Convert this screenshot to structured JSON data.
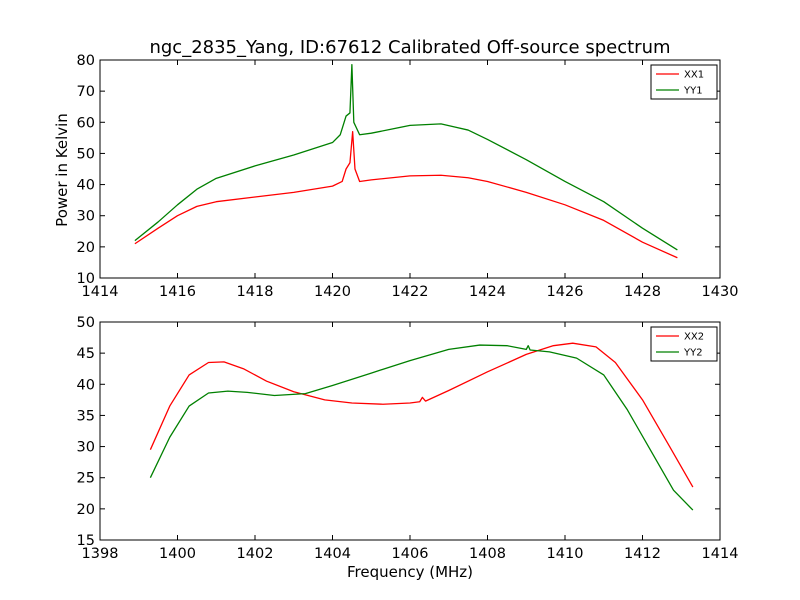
{
  "figure": {
    "title": "ngc_2835_Yang, ID:67612 Calibrated Off-source spectrum",
    "ylabel_top": "Power in Kelvin",
    "xlabel_bottom": "Frequency (MHz)"
  },
  "chart_data": [
    {
      "type": "line",
      "title": "ngc_2835_Yang, ID:67612 Calibrated Off-source spectrum",
      "xlabel": "",
      "ylabel": "Power in Kelvin",
      "xlim": [
        1414,
        1430
      ],
      "ylim": [
        10,
        80
      ],
      "xticks": [
        1414,
        1416,
        1418,
        1420,
        1422,
        1424,
        1426,
        1428,
        1430
      ],
      "yticks": [
        10,
        20,
        30,
        40,
        50,
        60,
        70,
        80
      ],
      "legend": "top-right",
      "grid": false,
      "series": [
        {
          "name": "XX1",
          "color": "#ff0000",
          "x": [
            1414.9,
            1415.5,
            1416.0,
            1416.5,
            1417.0,
            1418.0,
            1419.0,
            1420.0,
            1420.25,
            1420.35,
            1420.45,
            1420.52,
            1420.58,
            1420.7,
            1421.0,
            1422.0,
            1422.8,
            1423.5,
            1424.0,
            1425.0,
            1426.0,
            1427.0,
            1428.0,
            1428.9
          ],
          "y": [
            21.0,
            26.0,
            30.0,
            33.0,
            34.5,
            36.0,
            37.5,
            39.5,
            41.0,
            45.0,
            47.0,
            57.0,
            45.0,
            41.0,
            41.5,
            42.8,
            43.0,
            42.2,
            41.0,
            37.5,
            33.5,
            28.5,
            21.5,
            16.5
          ]
        },
        {
          "name": "YY1",
          "color": "#008000",
          "x": [
            1414.9,
            1415.5,
            1416.0,
            1416.5,
            1417.0,
            1418.0,
            1419.0,
            1420.0,
            1420.2,
            1420.35,
            1420.45,
            1420.5,
            1420.55,
            1420.7,
            1421.0,
            1422.0,
            1422.8,
            1423.5,
            1424.0,
            1425.0,
            1426.0,
            1427.0,
            1428.0,
            1428.9
          ],
          "y": [
            22.0,
            28.0,
            33.5,
            38.5,
            42.0,
            46.0,
            49.5,
            53.5,
            56.0,
            62.0,
            63.0,
            78.5,
            60.0,
            56.0,
            56.5,
            59.0,
            59.5,
            57.5,
            54.5,
            48.0,
            41.0,
            34.5,
            26.0,
            19.0
          ]
        }
      ]
    },
    {
      "type": "line",
      "title": "",
      "xlabel": "Frequency (MHz)",
      "ylabel": "",
      "xlim": [
        1398,
        1414
      ],
      "ylim": [
        15,
        50
      ],
      "xticks": [
        1398,
        1400,
        1402,
        1404,
        1406,
        1408,
        1410,
        1412,
        1414
      ],
      "yticks": [
        15,
        20,
        25,
        30,
        35,
        40,
        45,
        50
      ],
      "legend": "top-right",
      "grid": false,
      "series": [
        {
          "name": "XX2",
          "color": "#ff0000",
          "x": [
            1399.3,
            1399.8,
            1400.3,
            1400.8,
            1401.2,
            1401.7,
            1402.3,
            1403.0,
            1403.8,
            1404.5,
            1405.3,
            1406.0,
            1406.25,
            1406.32,
            1406.4,
            1407.0,
            1408.0,
            1409.0,
            1409.7,
            1410.2,
            1410.8,
            1411.3,
            1412.0,
            1412.7,
            1413.3
          ],
          "y": [
            29.5,
            36.5,
            41.5,
            43.5,
            43.6,
            42.5,
            40.5,
            38.8,
            37.5,
            37.0,
            36.8,
            37.0,
            37.2,
            37.9,
            37.3,
            39.0,
            42.0,
            44.8,
            46.2,
            46.6,
            46.0,
            43.5,
            37.5,
            30.0,
            23.5
          ]
        },
        {
          "name": "YY2",
          "color": "#008000",
          "x": [
            1399.3,
            1399.8,
            1400.3,
            1400.8,
            1401.3,
            1401.8,
            1402.5,
            1403.3,
            1404.0,
            1405.0,
            1406.0,
            1407.0,
            1407.8,
            1408.5,
            1409.0,
            1409.05,
            1409.1,
            1409.6,
            1410.3,
            1411.0,
            1411.6,
            1412.2,
            1412.8,
            1413.3
          ],
          "y": [
            25.0,
            31.5,
            36.5,
            38.6,
            38.9,
            38.7,
            38.2,
            38.5,
            39.8,
            41.8,
            43.8,
            45.6,
            46.3,
            46.2,
            45.6,
            46.2,
            45.5,
            45.2,
            44.2,
            41.5,
            36.0,
            29.5,
            23.0,
            19.8
          ]
        }
      ]
    }
  ]
}
